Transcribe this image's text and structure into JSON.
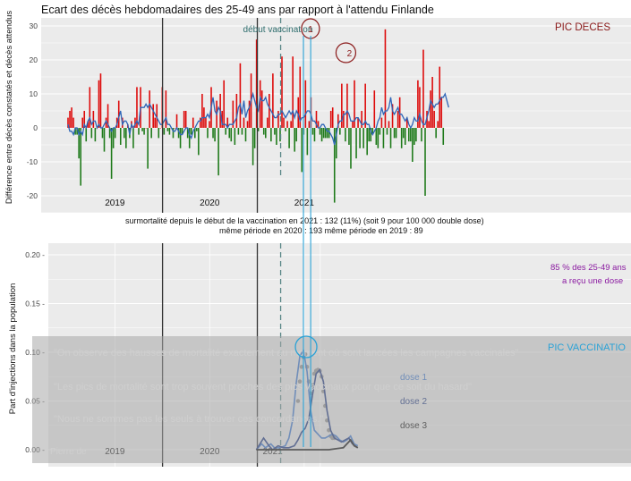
{
  "colors": {
    "panel_bg": "#ebebeb",
    "grid": "#ffffff",
    "excess": "#dd0a0a",
    "deficit": "#1e7a1a",
    "smooth_line": "#2f66b8",
    "vacc_label": "#2f6e6e",
    "pic_deces": "#8b1a1a",
    "pic_vacc": "#2aa2d6",
    "purple": "#8a1aa0",
    "dose1": "#2f6fce",
    "dose2": "#0f2a7a",
    "dose3": "#000000",
    "overlay": "#a8a8a8"
  },
  "chart_data": [
    {
      "type": "bar",
      "title": "Ecart des décès hebdomadaires des 25-49 ans par rapport à l'attendu Finlande",
      "ylabel": "Différence entre décès constatés et décès attendus",
      "ylim": [
        -25,
        31
      ],
      "yticks": [
        30,
        20,
        10,
        0,
        -10,
        -20
      ],
      "grid": true,
      "year_labels": [
        "2019",
        "2020",
        "2021"
      ],
      "start": "2019-01-01",
      "year_boundaries": [
        "2020-01-01",
        "2021-01-01"
      ],
      "annotations": {
        "vaccination": {
          "label": "début vaccination",
          "date": "2021-04-01"
        },
        "pic_deces": {
          "label": "PIC DECES",
          "markers": [
            "1",
            "2"
          ],
          "dates": [
            "2021-07-08",
            "2021-11-25"
          ]
        }
      },
      "weekly_excess": [
        3,
        5,
        6,
        3,
        -2,
        -2,
        -9,
        -17,
        3,
        5,
        -4,
        2,
        12,
        -3,
        5,
        -4,
        0,
        14,
        16,
        -3,
        -7,
        3,
        7,
        -3,
        -15,
        -6,
        -3,
        3,
        8,
        -5,
        3,
        -3,
        -6,
        1,
        -3,
        2,
        -6,
        3,
        12,
        -2,
        12,
        -1,
        -2,
        0,
        -12,
        11,
        -3,
        7,
        3,
        7,
        -3,
        0,
        12,
        -2,
        11,
        -1,
        -2,
        0,
        -3,
        0,
        4,
        -3,
        -6,
        -2,
        5,
        5,
        -3,
        -6,
        -2,
        3,
        -3,
        -1,
        -8,
        3,
        10,
        6,
        3,
        -3,
        2,
        12,
        -3,
        -4,
        8,
        -14,
        10,
        5,
        14,
        -2,
        3,
        -3,
        -4,
        8,
        -5,
        10,
        -2,
        19,
        -2,
        3,
        -4,
        2,
        8,
        16,
        -11,
        -6,
        26,
        -1,
        14,
        11,
        -2,
        -3,
        3,
        10,
        -4,
        16,
        -2,
        -5,
        5,
        -4,
        21,
        3,
        -1,
        2,
        -6,
        2,
        21,
        -7,
        -4,
        9,
        18,
        -13,
        -2,
        14,
        -8,
        2,
        9,
        -2,
        -4,
        5,
        2,
        -2,
        -4,
        -3,
        -3,
        -3,
        -3,
        5,
        6,
        -22,
        -9,
        4,
        -2,
        13,
        5,
        -4,
        13,
        -5,
        -12,
        2,
        14,
        -9,
        3,
        -6,
        5,
        -6,
        13,
        -8,
        -4,
        -4,
        -2,
        11,
        -5,
        -6,
        -2,
        3,
        -6,
        29,
        -2,
        2,
        -6,
        7,
        -3,
        -3,
        5,
        9,
        -6,
        -3,
        -5,
        3,
        -4,
        -4,
        -10,
        -5,
        -4,
        14,
        12,
        -4,
        23,
        -20,
        5,
        2,
        11,
        15,
        5,
        -3,
        2,
        18,
        9,
        -5
      ],
      "smooth_line": [
        1,
        -1,
        -1,
        -2,
        0,
        0,
        -2,
        -1,
        -2,
        1,
        0,
        2,
        3,
        1,
        2,
        2,
        0,
        1,
        0,
        0,
        1,
        2,
        1,
        0,
        -1,
        0,
        0,
        1,
        3,
        5,
        1,
        2,
        2,
        1,
        -2,
        1,
        0,
        1,
        2,
        1,
        6,
        6,
        6,
        7,
        6,
        7,
        6,
        5,
        4,
        3,
        2,
        1,
        1,
        2,
        3,
        1,
        1,
        0,
        -1,
        -1,
        0,
        -1,
        -2,
        -2,
        -1,
        0,
        0,
        -2,
        -3,
        -1,
        0,
        1,
        2,
        2,
        3,
        3,
        3,
        4,
        3,
        6,
        9,
        5,
        4,
        6,
        5,
        1,
        1,
        1,
        0,
        1,
        1,
        1,
        2,
        3,
        6,
        7,
        4,
        8,
        3,
        5,
        6,
        8,
        10,
        8,
        6,
        5,
        9,
        8,
        8,
        9,
        7,
        6,
        5,
        4,
        3,
        3,
        4,
        4,
        5,
        4,
        3,
        4,
        5,
        4,
        5,
        3,
        5,
        4,
        2,
        3,
        3,
        4,
        5,
        5,
        4,
        2,
        2,
        1,
        0,
        0,
        1,
        1,
        0,
        -1,
        -1,
        -2,
        -3,
        -5,
        -2,
        1,
        2,
        2,
        4,
        4,
        5,
        4,
        2,
        2,
        2,
        3,
        3,
        2,
        1,
        1,
        2,
        1,
        1,
        -1,
        -2,
        -1,
        0,
        2,
        3,
        6,
        4,
        5,
        5,
        6,
        9,
        5,
        4,
        5,
        6,
        4,
        4,
        3,
        2,
        3,
        1,
        0,
        1,
        3,
        2,
        2,
        4,
        2,
        1,
        1,
        3,
        5,
        8,
        7,
        6,
        7,
        7,
        8,
        9,
        9,
        10,
        8,
        6
      ],
      "texts": {
        "stats_line1": "surmortalité depuis le début de la vaccination en 2021 : 132  (11%)           (soit 9 pour 100 000 double dose)",
        "stats_line2": "même période en 2020 : 193              même période en 2019 : 89"
      }
    },
    {
      "type": "line",
      "ylabel": "Part d'injections dans la population",
      "ylim": [
        -0.008,
        0.225
      ],
      "yticks": [
        0.0,
        0.05,
        0.1,
        0.15,
        0.2
      ],
      "ytick_labels": [
        "0.00 -",
        "0.05 -",
        "0.10 -",
        "0.15 -",
        "0.20 -"
      ],
      "grid": true,
      "year_labels": [
        "2019",
        "2020",
        "2021"
      ],
      "start": "2019-01-01",
      "year_boundaries": [
        "2020-01-01",
        "2021-01-01"
      ],
      "vaccination_start": "2021-04-01",
      "series": [
        {
          "name": "dose 1",
          "key": "dose1",
          "points": [
            [
              "2020-12-28",
              0.0
            ],
            [
              "2021-01-18",
              0.006
            ],
            [
              "2021-02-01",
              0.002
            ],
            [
              "2021-02-22",
              0.006
            ],
            [
              "2021-03-08",
              0.002
            ],
            [
              "2021-03-29",
              0.002
            ],
            [
              "2021-04-19",
              0.004
            ],
            [
              "2021-05-03",
              0.012
            ],
            [
              "2021-05-17",
              0.03
            ],
            [
              "2021-05-31",
              0.068
            ],
            [
              "2021-06-14",
              0.096
            ],
            [
              "2021-06-28",
              0.102
            ],
            [
              "2021-07-12",
              0.08
            ],
            [
              "2021-07-26",
              0.04
            ],
            [
              "2021-08-09",
              0.02
            ],
            [
              "2021-08-23",
              0.016
            ],
            [
              "2021-09-06",
              0.012
            ],
            [
              "2021-09-20",
              0.012
            ],
            [
              "2021-10-04",
              0.014
            ],
            [
              "2021-10-18",
              0.016
            ],
            [
              "2021-11-01",
              0.014
            ],
            [
              "2021-11-15",
              0.01
            ],
            [
              "2021-11-29",
              0.008
            ],
            [
              "2021-12-13",
              0.01
            ],
            [
              "2021-12-27",
              0.014
            ],
            [
              "2022-01-10",
              0.006
            ],
            [
              "2022-01-24",
              0.004
            ]
          ]
        },
        {
          "name": "dose 2",
          "key": "dose2",
          "points": [
            [
              "2020-12-28",
              0.0
            ],
            [
              "2021-01-25",
              0.012
            ],
            [
              "2021-02-15",
              0.004
            ],
            [
              "2021-03-01",
              0.0
            ],
            [
              "2021-03-22",
              0.004
            ],
            [
              "2021-04-12",
              0.002
            ],
            [
              "2021-05-03",
              0.002
            ],
            [
              "2021-05-24",
              0.004
            ],
            [
              "2021-06-07",
              0.01
            ],
            [
              "2021-06-21",
              0.018
            ],
            [
              "2021-07-05",
              0.022
            ],
            [
              "2021-07-19",
              0.032
            ],
            [
              "2021-08-02",
              0.056
            ],
            [
              "2021-08-16",
              0.078
            ],
            [
              "2021-08-30",
              0.082
            ],
            [
              "2021-09-13",
              0.07
            ],
            [
              "2021-09-27",
              0.04
            ],
            [
              "2021-10-11",
              0.02
            ],
            [
              "2021-10-25",
              0.012
            ],
            [
              "2021-11-08",
              0.01
            ],
            [
              "2021-11-22",
              0.008
            ],
            [
              "2021-12-06",
              0.01
            ],
            [
              "2021-12-20",
              0.012
            ],
            [
              "2022-01-03",
              0.006
            ],
            [
              "2022-01-24",
              0.002
            ]
          ]
        },
        {
          "name": "dose 3",
          "key": "dose3",
          "points": [
            [
              "2020-12-28",
              0.0
            ],
            [
              "2021-10-04",
              0.0
            ],
            [
              "2021-11-01",
              0.001
            ],
            [
              "2021-11-29",
              0.002
            ],
            [
              "2021-12-27",
              0.01
            ],
            [
              "2022-01-10",
              0.004
            ],
            [
              "2022-01-24",
              0.002
            ]
          ]
        }
      ],
      "dotted_points": [
        [
          "2021-06-07",
          0.05
        ],
        [
          "2021-06-14",
          0.07
        ],
        [
          "2021-06-21",
          0.085
        ],
        [
          "2021-06-28",
          0.095
        ],
        [
          "2021-07-05",
          0.098
        ],
        [
          "2021-07-12",
          0.085
        ],
        [
          "2021-07-19",
          0.07
        ],
        [
          "2021-07-26",
          0.058
        ],
        [
          "2021-08-02",
          0.066
        ],
        [
          "2021-08-09",
          0.078
        ],
        [
          "2021-08-16",
          0.081
        ],
        [
          "2021-08-23",
          0.082
        ],
        [
          "2021-08-30",
          0.081
        ],
        [
          "2021-09-06",
          0.075
        ],
        [
          "2021-09-13",
          0.06
        ],
        [
          "2021-09-20",
          0.045
        ],
        [
          "2021-09-27",
          0.03
        ],
        [
          "2021-10-04",
          0.02
        ],
        [
          "2021-10-11",
          0.014
        ],
        [
          "2021-10-18",
          0.012
        ],
        [
          "2021-10-25",
          0.012
        ]
      ],
      "annotations": {
        "pic_vaccination": {
          "label": "PIC VACCINATIO",
          "date": "2021-06-28"
        },
        "share_line1": "85 % des 25-49 ans",
        "share_line2": "a reçu une dose",
        "pic_lines": [
          "2021-06-28",
          "2021-07-26"
        ]
      }
    }
  ],
  "overlay_quotes": [
    "\"On observe des hausses de mortalité exactement au moment où sont lancées les campagnes vaccinales\"",
    "\"Les pics de mortalité sont trop souvent proches des pics vaccinaux pour que ce soit du hasard\"",
    "\"Nous ne sommes pas les seuls à trouver ces concordances.\""
  ],
  "overlay_signature": "Pierre de"
}
